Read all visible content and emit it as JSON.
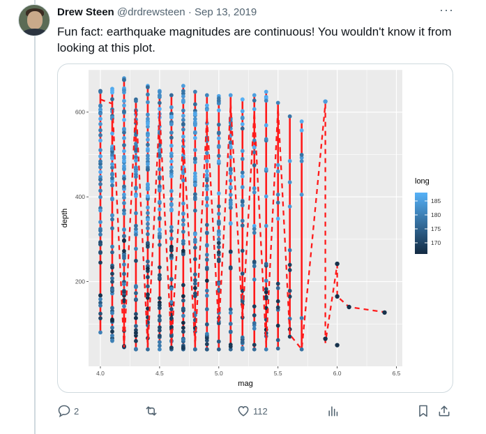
{
  "tweet": {
    "author_name": "Drew Steen",
    "handle": "@drdrewsteen",
    "separator": "·",
    "date": "Sep 13, 2019",
    "more_label": "···",
    "text": "Fun fact: earthquake magnitudes are continuous! You wouldn't know it from looking at this plot."
  },
  "actions": {
    "reply_count": "2",
    "retweet_count": "",
    "like_count": "112"
  },
  "colors": {
    "line": "#ff1a1a",
    "panel": "#ebebeb",
    "grid": "#ffffff",
    "point_low": "#132b43",
    "point_high": "#56b1f7",
    "link": "#536471"
  },
  "icons": [
    "reply-icon",
    "retweet-icon",
    "like-icon",
    "views-icon",
    "bookmark-icon",
    "share-icon"
  ],
  "chart_data": {
    "type": "scatter",
    "xlabel": "mag",
    "ylabel": "depth",
    "xlim": [
      3.9,
      6.55
    ],
    "ylim": [
      0,
      700
    ],
    "x_ticks": [
      "4.0",
      "4.5",
      "5.0",
      "5.5",
      "6.0",
      "6.5"
    ],
    "y_ticks": [
      "200",
      "400",
      "600"
    ],
    "legend": {
      "title": "long",
      "ticks": [
        "185",
        "180",
        "175",
        "170"
      ],
      "range": [
        166,
        188
      ],
      "placement": "right"
    },
    "grid": true,
    "columns": [
      {
        "mag": 4.0,
        "top": 650,
        "bottom": 80,
        "n": 50
      },
      {
        "mag": 4.1,
        "top": 655,
        "bottom": 60,
        "n": 60
      },
      {
        "mag": 4.2,
        "top": 680,
        "bottom": 45,
        "n": 65
      },
      {
        "mag": 4.3,
        "top": 630,
        "bottom": 40,
        "n": 55
      },
      {
        "mag": 4.4,
        "top": 662,
        "bottom": 40,
        "n": 60
      },
      {
        "mag": 4.5,
        "top": 650,
        "bottom": 40,
        "n": 60
      },
      {
        "mag": 4.6,
        "top": 640,
        "bottom": 40,
        "n": 60
      },
      {
        "mag": 4.7,
        "top": 662,
        "bottom": 40,
        "n": 58
      },
      {
        "mag": 4.8,
        "top": 648,
        "bottom": 40,
        "n": 50
      },
      {
        "mag": 4.9,
        "top": 640,
        "bottom": 40,
        "n": 42
      },
      {
        "mag": 5.0,
        "top": 638,
        "bottom": 40,
        "n": 45
      },
      {
        "mag": 5.1,
        "top": 640,
        "bottom": 40,
        "n": 40
      },
      {
        "mag": 5.2,
        "top": 630,
        "bottom": 40,
        "n": 32
      },
      {
        "mag": 5.3,
        "top": 640,
        "bottom": 40,
        "n": 25
      },
      {
        "mag": 5.4,
        "top": 648,
        "bottom": 40,
        "n": 24
      },
      {
        "mag": 5.5,
        "top": 622,
        "bottom": 42,
        "n": 14
      },
      {
        "mag": 5.6,
        "top": 590,
        "bottom": 70,
        "n": 12
      },
      {
        "mag": 5.7,
        "top": 578,
        "bottom": 40,
        "n": 8
      }
    ],
    "mean_path": [
      [
        4.0,
        630
      ],
      [
        4.1,
        620
      ],
      [
        4.2,
        45
      ],
      [
        4.3,
        620
      ],
      [
        4.4,
        45
      ],
      [
        4.5,
        600
      ],
      [
        4.6,
        50
      ],
      [
        4.7,
        540
      ],
      [
        4.8,
        50
      ],
      [
        4.9,
        590
      ],
      [
        5.0,
        90
      ],
      [
        5.1,
        620
      ],
      [
        5.2,
        110
      ],
      [
        5.3,
        600
      ],
      [
        5.4,
        50
      ],
      [
        5.5,
        610
      ],
      [
        5.6,
        75
      ],
      [
        5.7,
        40
      ],
      [
        5.9,
        620
      ],
      [
        5.9,
        55
      ],
      [
        6.0,
        240
      ],
      [
        6.0,
        165
      ],
      [
        6.1,
        140
      ],
      [
        6.4,
        128
      ]
    ],
    "points": [
      [
        5.9,
        625
      ],
      [
        5.9,
        65
      ],
      [
        6.0,
        242
      ],
      [
        6.0,
        165
      ],
      [
        6.0,
        50
      ],
      [
        6.1,
        140
      ],
      [
        6.4,
        127
      ]
    ]
  }
}
